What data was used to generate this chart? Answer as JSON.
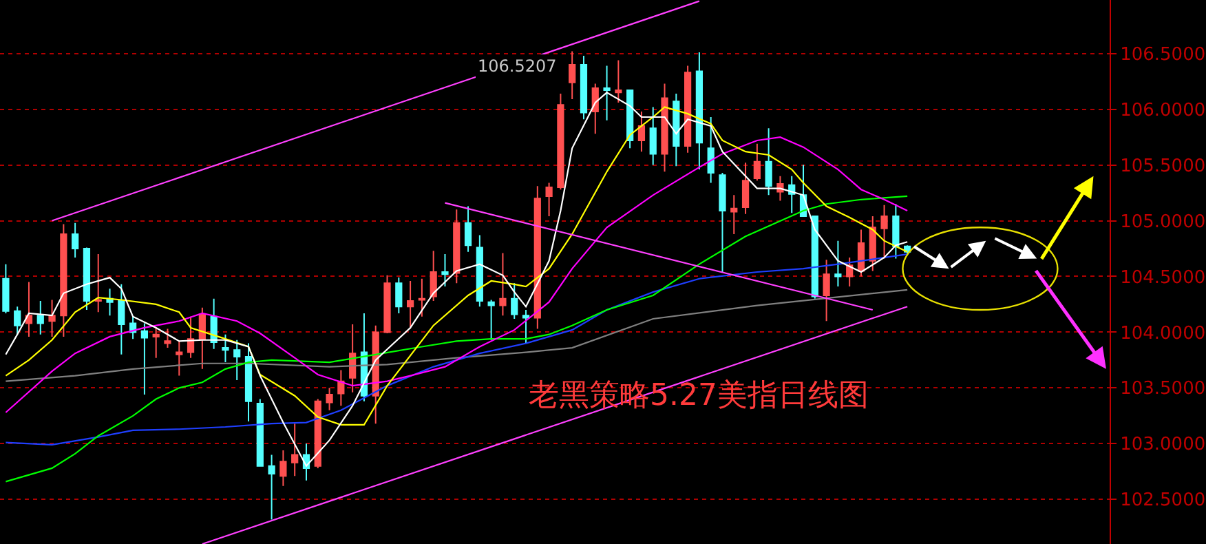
{
  "chart_data": {
    "type": "candlestick",
    "title": "老黑策略5.27美指日线图",
    "annotations": [
      "106.5207"
    ],
    "categories": [
      null,
      null,
      null,
      null,
      null,
      null,
      null,
      null,
      null,
      null,
      null,
      null,
      null,
      null,
      null,
      null,
      null,
      null,
      null,
      null,
      null,
      null,
      null,
      null,
      null,
      null,
      null,
      null,
      null,
      null,
      null,
      null,
      null,
      null,
      null,
      null,
      null,
      null,
      null,
      null,
      null,
      null,
      null,
      null,
      null,
      null,
      null,
      null,
      null,
      null,
      null,
      null,
      null,
      null,
      null,
      null,
      null,
      null,
      null,
      null,
      null,
      null,
      null,
      null,
      null,
      null,
      null,
      null,
      null,
      null,
      null,
      null,
      null,
      null,
      null,
      null,
      null,
      null,
      null
    ],
    "ohlc": [
      [
        104.48,
        104.61,
        104.17,
        104.19
      ],
      [
        104.19,
        104.23,
        103.98,
        104.06
      ],
      [
        104.08,
        104.45,
        103.96,
        104.15
      ],
      [
        104.15,
        104.28,
        103.98,
        104.08
      ],
      [
        104.1,
        104.29,
        103.96,
        104.15
      ],
      [
        104.15,
        104.97,
        103.96,
        104.88
      ],
      [
        104.88,
        104.98,
        104.67,
        104.75
      ],
      [
        104.75,
        104.76,
        104.2,
        104.28
      ],
      [
        104.28,
        104.7,
        104.18,
        104.29
      ],
      [
        104.3,
        104.39,
        104.15,
        104.27
      ],
      [
        104.28,
        104.43,
        103.8,
        104.07
      ],
      [
        104.08,
        104.14,
        103.94,
        104.0
      ],
      [
        104.01,
        104.08,
        103.44,
        103.95
      ],
      [
        103.96,
        104.04,
        103.77,
        103.98
      ],
      [
        103.9,
        104.03,
        103.86,
        103.92
      ],
      [
        103.8,
        103.92,
        103.61,
        103.82
      ],
      [
        103.82,
        104.14,
        103.77,
        103.94
      ],
      [
        103.94,
        104.22,
        103.67,
        104.16
      ],
      [
        104.14,
        104.3,
        103.85,
        103.91
      ],
      [
        103.86,
        103.98,
        103.73,
        103.84
      ],
      [
        103.84,
        103.93,
        103.57,
        103.78
      ],
      [
        103.78,
        103.9,
        103.2,
        103.38
      ],
      [
        103.36,
        103.4,
        102.8,
        102.8
      ],
      [
        102.8,
        102.9,
        102.32,
        102.73
      ],
      [
        102.71,
        102.94,
        102.62,
        102.84
      ],
      [
        102.83,
        103.18,
        102.71,
        102.9
      ],
      [
        102.9,
        103.0,
        102.67,
        102.78
      ],
      [
        102.8,
        103.4,
        102.78,
        103.38
      ],
      [
        103.37,
        103.5,
        103.3,
        103.44
      ],
      [
        103.45,
        103.66,
        103.34,
        103.56
      ],
      [
        103.59,
        104.07,
        103.46,
        103.81
      ],
      [
        103.82,
        104.17,
        103.38,
        103.43
      ],
      [
        103.43,
        104.06,
        103.18,
        104.0
      ],
      [
        104.0,
        104.51,
        103.99,
        104.44
      ],
      [
        104.44,
        104.49,
        104.17,
        104.23
      ],
      [
        104.23,
        104.46,
        104.03,
        104.28
      ],
      [
        104.29,
        104.48,
        104.14,
        104.3
      ],
      [
        104.32,
        104.73,
        104.28,
        104.54
      ],
      [
        104.54,
        104.7,
        104.41,
        104.52
      ],
      [
        104.53,
        105.1,
        104.44,
        104.98
      ],
      [
        104.98,
        105.13,
        104.72,
        104.78
      ],
      [
        104.76,
        104.87,
        104.23,
        104.28
      ],
      [
        104.27,
        104.29,
        103.93,
        104.24
      ],
      [
        104.24,
        104.71,
        104.15,
        104.3
      ],
      [
        104.3,
        104.44,
        104.12,
        104.16
      ],
      [
        104.15,
        104.2,
        103.9,
        104.13
      ],
      [
        104.13,
        105.31,
        104.03,
        105.2
      ],
      [
        105.22,
        105.34,
        105.04,
        105.3
      ],
      [
        105.3,
        106.14,
        105.28,
        106.04
      ],
      [
        106.24,
        106.52,
        106.09,
        106.4
      ],
      [
        106.4,
        106.48,
        105.91,
        105.97
      ],
      [
        105.98,
        106.23,
        105.78,
        106.19
      ],
      [
        106.19,
        106.39,
        105.9,
        106.17
      ],
      [
        106.15,
        106.44,
        106.06,
        106.17
      ],
      [
        106.17,
        106.17,
        105.65,
        105.72
      ],
      [
        105.72,
        105.98,
        105.62,
        105.85
      ],
      [
        105.83,
        106.02,
        105.5,
        105.6
      ],
      [
        105.6,
        106.23,
        105.44,
        106.1
      ],
      [
        106.07,
        106.14,
        105.49,
        105.67
      ],
      [
        105.67,
        106.39,
        105.61,
        106.33
      ],
      [
        106.34,
        106.51,
        105.46,
        105.7
      ],
      [
        105.65,
        105.93,
        105.34,
        105.43
      ],
      [
        105.41,
        105.43,
        104.54,
        105.09
      ],
      [
        105.08,
        105.23,
        104.88,
        105.11
      ],
      [
        105.12,
        105.52,
        105.06,
        105.36
      ],
      [
        105.38,
        105.69,
        105.36,
        105.53
      ],
      [
        105.53,
        105.83,
        105.23,
        105.31
      ],
      [
        105.26,
        105.4,
        105.18,
        105.33
      ],
      [
        105.32,
        105.4,
        105.07,
        105.24
      ],
      [
        105.23,
        105.5,
        105.04,
        105.04
      ],
      [
        105.04,
        105.04,
        104.3,
        104.32
      ],
      [
        104.33,
        104.65,
        104.1,
        104.52
      ],
      [
        104.52,
        104.82,
        104.41,
        104.5
      ],
      [
        104.5,
        104.67,
        104.41,
        104.6
      ],
      [
        104.55,
        104.92,
        104.5,
        104.8
      ],
      [
        104.64,
        105.04,
        104.55,
        104.94
      ],
      [
        104.93,
        105.14,
        104.66,
        105.04
      ],
      [
        105.04,
        105.15,
        104.66,
        104.77
      ],
      [
        104.77,
        104.78,
        104.7,
        104.72
      ]
    ],
    "series": [
      {
        "type": "line",
        "color": "#808080",
        "values": [
          103.56,
          null,
          null,
          null,
          null,
          null,
          103.61,
          null,
          null,
          null,
          null,
          103.67,
          null,
          null,
          null,
          null,
          null,
          103.72,
          null,
          null,
          null,
          103.72,
          null,
          null,
          null,
          null,
          null,
          null,
          103.69,
          null,
          null,
          null,
          null,
          103.71,
          null,
          null,
          null,
          null,
          null,
          103.77,
          null,
          null,
          null,
          null,
          null,
          103.82,
          null,
          null,
          null,
          103.86,
          null,
          null,
          null,
          null,
          null,
          null,
          104.12,
          null,
          null,
          null,
          null,
          null,
          null,
          null,
          null,
          104.24,
          null,
          null,
          null,
          null,
          null,
          null,
          null,
          null,
          null,
          null,
          null,
          null,
          104.38
        ]
      },
      {
        "type": "line",
        "color": "#1f3fff",
        "values": [
          103.01,
          null,
          null,
          null,
          102.99,
          null,
          null,
          null,
          103.06,
          null,
          null,
          103.12,
          null,
          null,
          null,
          103.13,
          null,
          null,
          null,
          103.15,
          null,
          null,
          null,
          103.18,
          null,
          null,
          103.19,
          null,
          null,
          103.3,
          null,
          null,
          null,
          103.52,
          null,
          null,
          null,
          103.69,
          null,
          null,
          null,
          103.81,
          null,
          null,
          null,
          103.9,
          null,
          null,
          null,
          104.02,
          null,
          null,
          104.2,
          null,
          null,
          null,
          104.36,
          null,
          null,
          null,
          104.48,
          null,
          null,
          null,
          null,
          104.54,
          null,
          null,
          null,
          104.57,
          null,
          null,
          104.61,
          null,
          null,
          null,
          null,
          null,
          104.7
        ]
      },
      {
        "type": "line",
        "color": "#00ff00",
        "values": [
          102.66,
          null,
          null,
          null,
          102.78,
          null,
          102.91,
          null,
          103.07,
          null,
          null,
          103.25,
          null,
          103.4,
          null,
          103.5,
          null,
          103.55,
          null,
          103.67,
          null,
          103.73,
          null,
          103.75,
          null,
          null,
          null,
          null,
          103.73,
          null,
          null,
          null,
          103.8,
          null,
          null,
          null,
          103.87,
          null,
          null,
          103.92,
          null,
          null,
          103.94,
          null,
          null,
          103.94,
          null,
          103.98,
          null,
          104.06,
          null,
          null,
          104.2,
          null,
          null,
          null,
          104.33,
          null,
          null,
          null,
          104.61,
          null,
          null,
          null,
          104.86,
          null,
          null,
          null,
          null,
          105.09,
          null,
          105.15,
          null,
          null,
          105.19,
          null,
          null,
          null,
          105.22
        ]
      },
      {
        "type": "line",
        "color": "#ff00ff",
        "values": [
          103.28,
          null,
          null,
          null,
          103.65,
          null,
          103.81,
          null,
          null,
          103.96,
          null,
          null,
          104.04,
          null,
          null,
          104.1,
          null,
          104.17,
          null,
          null,
          104.1,
          null,
          103.99,
          null,
          null,
          103.77,
          null,
          103.62,
          null,
          null,
          103.52,
          null,
          null,
          103.56,
          null,
          103.61,
          null,
          null,
          103.69,
          null,
          null,
          103.87,
          null,
          null,
          104.02,
          null,
          null,
          104.27,
          null,
          104.57,
          null,
          null,
          104.94,
          null,
          null,
          null,
          105.23,
          null,
          null,
          null,
          105.48,
          null,
          105.6,
          null,
          null,
          105.72,
          null,
          105.75,
          null,
          105.66,
          null,
          null,
          105.46,
          null,
          105.28,
          null,
          105.19,
          null,
          105.09
        ]
      },
      {
        "type": "line",
        "color": "#ffff00",
        "values": [
          103.61,
          null,
          103.75,
          null,
          103.93,
          null,
          104.18,
          null,
          104.31,
          null,
          104.29,
          null,
          null,
          104.25,
          null,
          104.18,
          104.04,
          null,
          null,
          103.94,
          null,
          103.87,
          103.62,
          null,
          null,
          103.43,
          null,
          103.24,
          null,
          103.17,
          null,
          103.17,
          null,
          103.52,
          null,
          null,
          null,
          104.06,
          null,
          null,
          104.33,
          null,
          104.46,
          null,
          104.43,
          104.41,
          null,
          104.57,
          null,
          104.88,
          null,
          null,
          105.44,
          null,
          105.77,
          null,
          105.93,
          106.02,
          null,
          105.96,
          null,
          105.87,
          105.72,
          null,
          105.62,
          null,
          105.59,
          null,
          105.46,
          105.34,
          null,
          105.13,
          null,
          105.03,
          null,
          104.92,
          104.82,
          null,
          104.72
        ]
      },
      {
        "type": "line",
        "color": "#ffffff",
        "values": [
          103.8,
          103.98,
          104.17,
          null,
          104.15,
          104.35,
          null,
          104.43,
          null,
          104.49,
          104.39,
          104.14,
          null,
          104.04,
          null,
          103.92,
          null,
          103.93,
          null,
          103.93,
          null,
          103.87,
          103.61,
          null,
          103.19,
          null,
          102.8,
          null,
          103.03,
          null,
          103.34,
          null,
          103.75,
          null,
          null,
          104.04,
          null,
          104.35,
          null,
          104.55,
          null,
          104.61,
          null,
          104.51,
          104.36,
          104.23,
          null,
          104.64,
          105.09,
          105.65,
          null,
          106.06,
          106.15,
          null,
          106.03,
          105.93,
          null,
          105.93,
          105.78,
          105.91,
          null,
          105.85,
          105.62,
          null,
          105.4,
          105.29,
          null,
          105.29,
          null,
          105.23,
          104.92,
          null,
          104.64,
          null,
          104.54,
          null,
          104.67,
          104.78,
          104.81
        ]
      },
      {
        "type": "line",
        "color": "#ff40ff",
        "values": [
          null,
          null,
          null,
          null,
          105.0,
          null,
          null,
          null,
          null,
          null,
          null,
          null,
          null,
          null,
          null,
          null,
          null,
          null,
          null,
          null,
          null,
          null,
          null,
          null,
          null,
          null,
          null,
          null,
          null,
          null,
          null,
          null,
          null,
          null,
          null,
          null,
          null,
          null,
          null,
          null,
          null,
          null,
          null,
          null,
          null,
          null,
          null,
          null,
          null,
          null,
          null,
          null,
          null,
          null,
          null,
          null,
          null,
          null,
          null,
          null,
          106.97,
          null,
          null,
          null,
          null,
          null,
          null,
          null,
          null,
          null,
          null,
          null,
          null,
          null,
          null,
          null,
          null,
          null,
          null
        ]
      },
      {
        "type": "line",
        "color": "#ff40ff",
        "values": [
          null,
          null,
          null,
          null,
          null,
          null,
          null,
          null,
          null,
          null,
          null,
          null,
          null,
          null,
          null,
          null,
          null,
          102.1,
          null,
          null,
          null,
          null,
          null,
          null,
          null,
          null,
          null,
          null,
          null,
          null,
          null,
          null,
          null,
          null,
          null,
          null,
          null,
          null,
          null,
          null,
          null,
          null,
          null,
          null,
          null,
          null,
          null,
          null,
          null,
          null,
          null,
          null,
          null,
          null,
          null,
          null,
          null,
          null,
          null,
          null,
          null,
          null,
          null,
          null,
          null,
          null,
          null,
          null,
          null,
          null,
          null,
          null,
          null,
          null,
          null,
          null,
          null,
          null,
          104.23
        ]
      },
      {
        "type": "line",
        "color": "#ff40ff",
        "values": [
          null,
          null,
          null,
          null,
          null,
          null,
          null,
          null,
          null,
          null,
          null,
          null,
          null,
          null,
          null,
          null,
          null,
          null,
          null,
          null,
          null,
          null,
          null,
          null,
          null,
          null,
          null,
          null,
          null,
          null,
          null,
          null,
          null,
          null,
          null,
          null,
          null,
          null,
          105.16,
          null,
          null,
          null,
          null,
          null,
          null,
          null,
          null,
          null,
          null,
          null,
          null,
          null,
          null,
          null,
          null,
          null,
          null,
          null,
          null,
          null,
          null,
          null,
          null,
          null,
          null,
          null,
          null,
          null,
          null,
          null,
          null,
          null,
          null,
          null,
          null,
          104.2,
          null,
          null,
          null
        ]
      }
    ],
    "ylim": [
      102.1,
      106.98
    ],
    "yticks": [
      {
        "value": 102.5,
        "label": "102.5000"
      },
      {
        "value": 103.0,
        "label": "103.0000"
      },
      {
        "value": 103.5,
        "label": "103.5000"
      },
      {
        "value": 104.0,
        "label": "104.0000"
      },
      {
        "value": 104.5,
        "label": "104.5000"
      },
      {
        "value": 105.0,
        "label": "105.0000"
      },
      {
        "value": 105.5,
        "label": "105.5000"
      },
      {
        "value": 106.0,
        "label": "106.0000"
      },
      {
        "value": 106.5,
        "label": "106.5000"
      }
    ],
    "grid": "y",
    "tick_labels": "y"
  }
}
